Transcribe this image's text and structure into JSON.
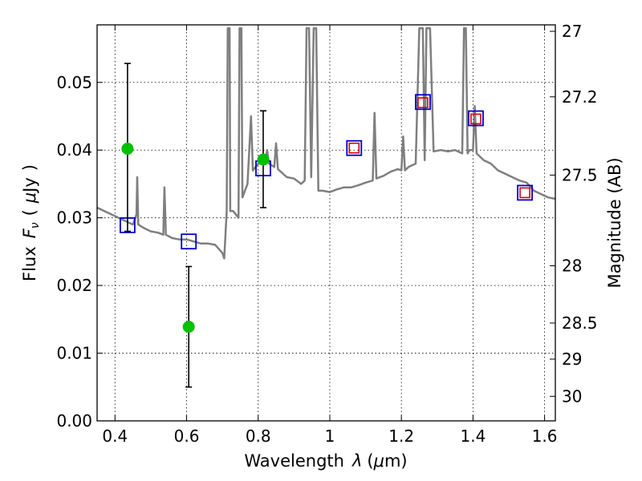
{
  "chart_data": {
    "type": "scatter",
    "xlabel_text": "Wavelength",
    "xlabel_symbol": "λ",
    "xlabel_unit_open": "(",
    "xlabel_unit_mu": "μ",
    "xlabel_unit_rest": "m)",
    "ylabel_text": "Flux",
    "ylabel_symbol": "F",
    "ylabel_sub": "ν",
    "ylabel_unit_open": "(",
    "ylabel_unit_mu": "μ",
    "ylabel_unit_rest": "Jy",
    "ylabel_unit_close": ")",
    "y2label": "Magnitude (AB)",
    "xlim": [
      0.35,
      1.63
    ],
    "ylim": [
      0.0,
      0.0585
    ],
    "xticks": [
      0.4,
      0.6,
      0.8,
      1.0,
      1.2,
      1.4,
      1.6
    ],
    "xtick_labels": [
      "0.4",
      "0.6",
      "0.8",
      "1",
      "1.2",
      "1.4",
      "1.6"
    ],
    "yticks": [
      0.0,
      0.01,
      0.02,
      0.03,
      0.04,
      0.05
    ],
    "ytick_labels": [
      "0.00",
      "0.01",
      "0.02",
      "0.03",
      "0.04",
      "0.05"
    ],
    "y2ticks": [
      {
        "mag": 27.0,
        "label": "27"
      },
      {
        "mag": 27.2,
        "label": "27.2"
      },
      {
        "mag": 27.5,
        "label": "27.5"
      },
      {
        "mag": 28.0,
        "label": "28"
      },
      {
        "mag": 28.5,
        "label": "28.5"
      },
      {
        "mag": 29.0,
        "label": "29"
      },
      {
        "mag": 30.0,
        "label": "30"
      }
    ],
    "grid": true,
    "colors": {
      "model": "#7f7f7f",
      "observed": "#00c000",
      "model_band": "#0000cc",
      "predicted": "#dd0000",
      "errorbar": "#000000"
    },
    "series": [
      {
        "kind": "line",
        "points": [
          [
            0.35,
            0.0315
          ],
          [
            0.37,
            0.031
          ],
          [
            0.39,
            0.0305
          ],
          [
            0.41,
            0.03
          ],
          [
            0.43,
            0.0295
          ],
          [
            0.45,
            0.029
          ],
          [
            0.46,
            0.0305
          ],
          [
            0.462,
            0.036
          ],
          [
            0.465,
            0.029
          ],
          [
            0.48,
            0.0285
          ],
          [
            0.5,
            0.028
          ],
          [
            0.52,
            0.0278
          ],
          [
            0.535,
            0.0275
          ],
          [
            0.538,
            0.0345
          ],
          [
            0.542,
            0.0275
          ],
          [
            0.56,
            0.027
          ],
          [
            0.58,
            0.0268
          ],
          [
            0.6,
            0.0268
          ],
          [
            0.62,
            0.0265
          ],
          [
            0.64,
            0.0262
          ],
          [
            0.66,
            0.0262
          ],
          [
            0.68,
            0.026
          ],
          [
            0.7,
            0.0248
          ],
          [
            0.705,
            0.024
          ],
          [
            0.712,
            0.031
          ],
          [
            0.715,
            0.058
          ],
          [
            0.72,
            0.058
          ],
          [
            0.722,
            0.031
          ],
          [
            0.73,
            0.031
          ],
          [
            0.745,
            0.03
          ],
          [
            0.748,
            0.058
          ],
          [
            0.753,
            0.058
          ],
          [
            0.756,
            0.033
          ],
          [
            0.77,
            0.035
          ],
          [
            0.78,
            0.045
          ],
          [
            0.785,
            0.037
          ],
          [
            0.8,
            0.038
          ],
          [
            0.82,
            0.0385
          ],
          [
            0.825,
            0.04
          ],
          [
            0.83,
            0.038
          ],
          [
            0.845,
            0.0375
          ],
          [
            0.85,
            0.041
          ],
          [
            0.855,
            0.0372
          ],
          [
            0.88,
            0.036
          ],
          [
            0.9,
            0.0358
          ],
          [
            0.92,
            0.035
          ],
          [
            0.93,
            0.0355
          ],
          [
            0.935,
            0.058
          ],
          [
            0.942,
            0.058
          ],
          [
            0.948,
            0.036
          ],
          [
            0.955,
            0.058
          ],
          [
            0.962,
            0.058
          ],
          [
            0.968,
            0.034
          ],
          [
            0.98,
            0.034
          ],
          [
            1.0,
            0.0338
          ],
          [
            1.02,
            0.0342
          ],
          [
            1.04,
            0.0345
          ],
          [
            1.06,
            0.0345
          ],
          [
            1.08,
            0.0348
          ],
          [
            1.1,
            0.0352
          ],
          [
            1.12,
            0.0355
          ],
          [
            1.125,
            0.0455
          ],
          [
            1.13,
            0.0358
          ],
          [
            1.15,
            0.0362
          ],
          [
            1.17,
            0.0368
          ],
          [
            1.19,
            0.0372
          ],
          [
            1.2,
            0.037
          ],
          [
            1.205,
            0.042
          ],
          [
            1.21,
            0.037
          ],
          [
            1.22,
            0.0375
          ],
          [
            1.24,
            0.038
          ],
          [
            1.25,
            0.058
          ],
          [
            1.26,
            0.058
          ],
          [
            1.265,
            0.0385
          ],
          [
            1.27,
            0.058
          ],
          [
            1.28,
            0.058
          ],
          [
            1.29,
            0.0398
          ],
          [
            1.31,
            0.04
          ],
          [
            1.33,
            0.0398
          ],
          [
            1.35,
            0.04
          ],
          [
            1.37,
            0.0395
          ],
          [
            1.375,
            0.058
          ],
          [
            1.38,
            0.058
          ],
          [
            1.385,
            0.0395
          ],
          [
            1.39,
            0.04
          ],
          [
            1.4,
            0.04
          ],
          [
            1.405,
            0.0465
          ],
          [
            1.41,
            0.0395
          ],
          [
            1.43,
            0.0385
          ],
          [
            1.45,
            0.038
          ],
          [
            1.47,
            0.037
          ],
          [
            1.49,
            0.0365
          ],
          [
            1.51,
            0.036
          ],
          [
            1.53,
            0.0355
          ],
          [
            1.55,
            0.0352
          ],
          [
            1.57,
            0.034
          ],
          [
            1.59,
            0.0335
          ],
          [
            1.61,
            0.033
          ],
          [
            1.63,
            0.0328
          ]
        ]
      },
      {
        "kind": "observed",
        "points": [
          {
            "x": 0.435,
            "y": 0.0402,
            "ylo": 0.028,
            "yhi": 0.0528
          },
          {
            "x": 0.606,
            "y": 0.0139,
            "ylo": 0.005,
            "yhi": 0.0228
          },
          {
            "x": 0.814,
            "y": 0.0386,
            "ylo": 0.0315,
            "yhi": 0.0458
          }
        ]
      },
      {
        "kind": "model_band",
        "points": [
          {
            "x": 0.435,
            "y": 0.0289
          },
          {
            "x": 0.606,
            "y": 0.0265
          },
          {
            "x": 0.814,
            "y": 0.0373
          },
          {
            "x": 1.068,
            "y": 0.0403
          },
          {
            "x": 1.26,
            "y": 0.0471
          },
          {
            "x": 1.408,
            "y": 0.0447
          },
          {
            "x": 1.545,
            "y": 0.0337
          }
        ]
      },
      {
        "kind": "predicted",
        "points": [
          {
            "x": 1.068,
            "y": 0.0403
          },
          {
            "x": 1.26,
            "y": 0.047
          },
          {
            "x": 1.408,
            "y": 0.0446
          },
          {
            "x": 1.545,
            "y": 0.0337
          }
        ]
      }
    ]
  }
}
